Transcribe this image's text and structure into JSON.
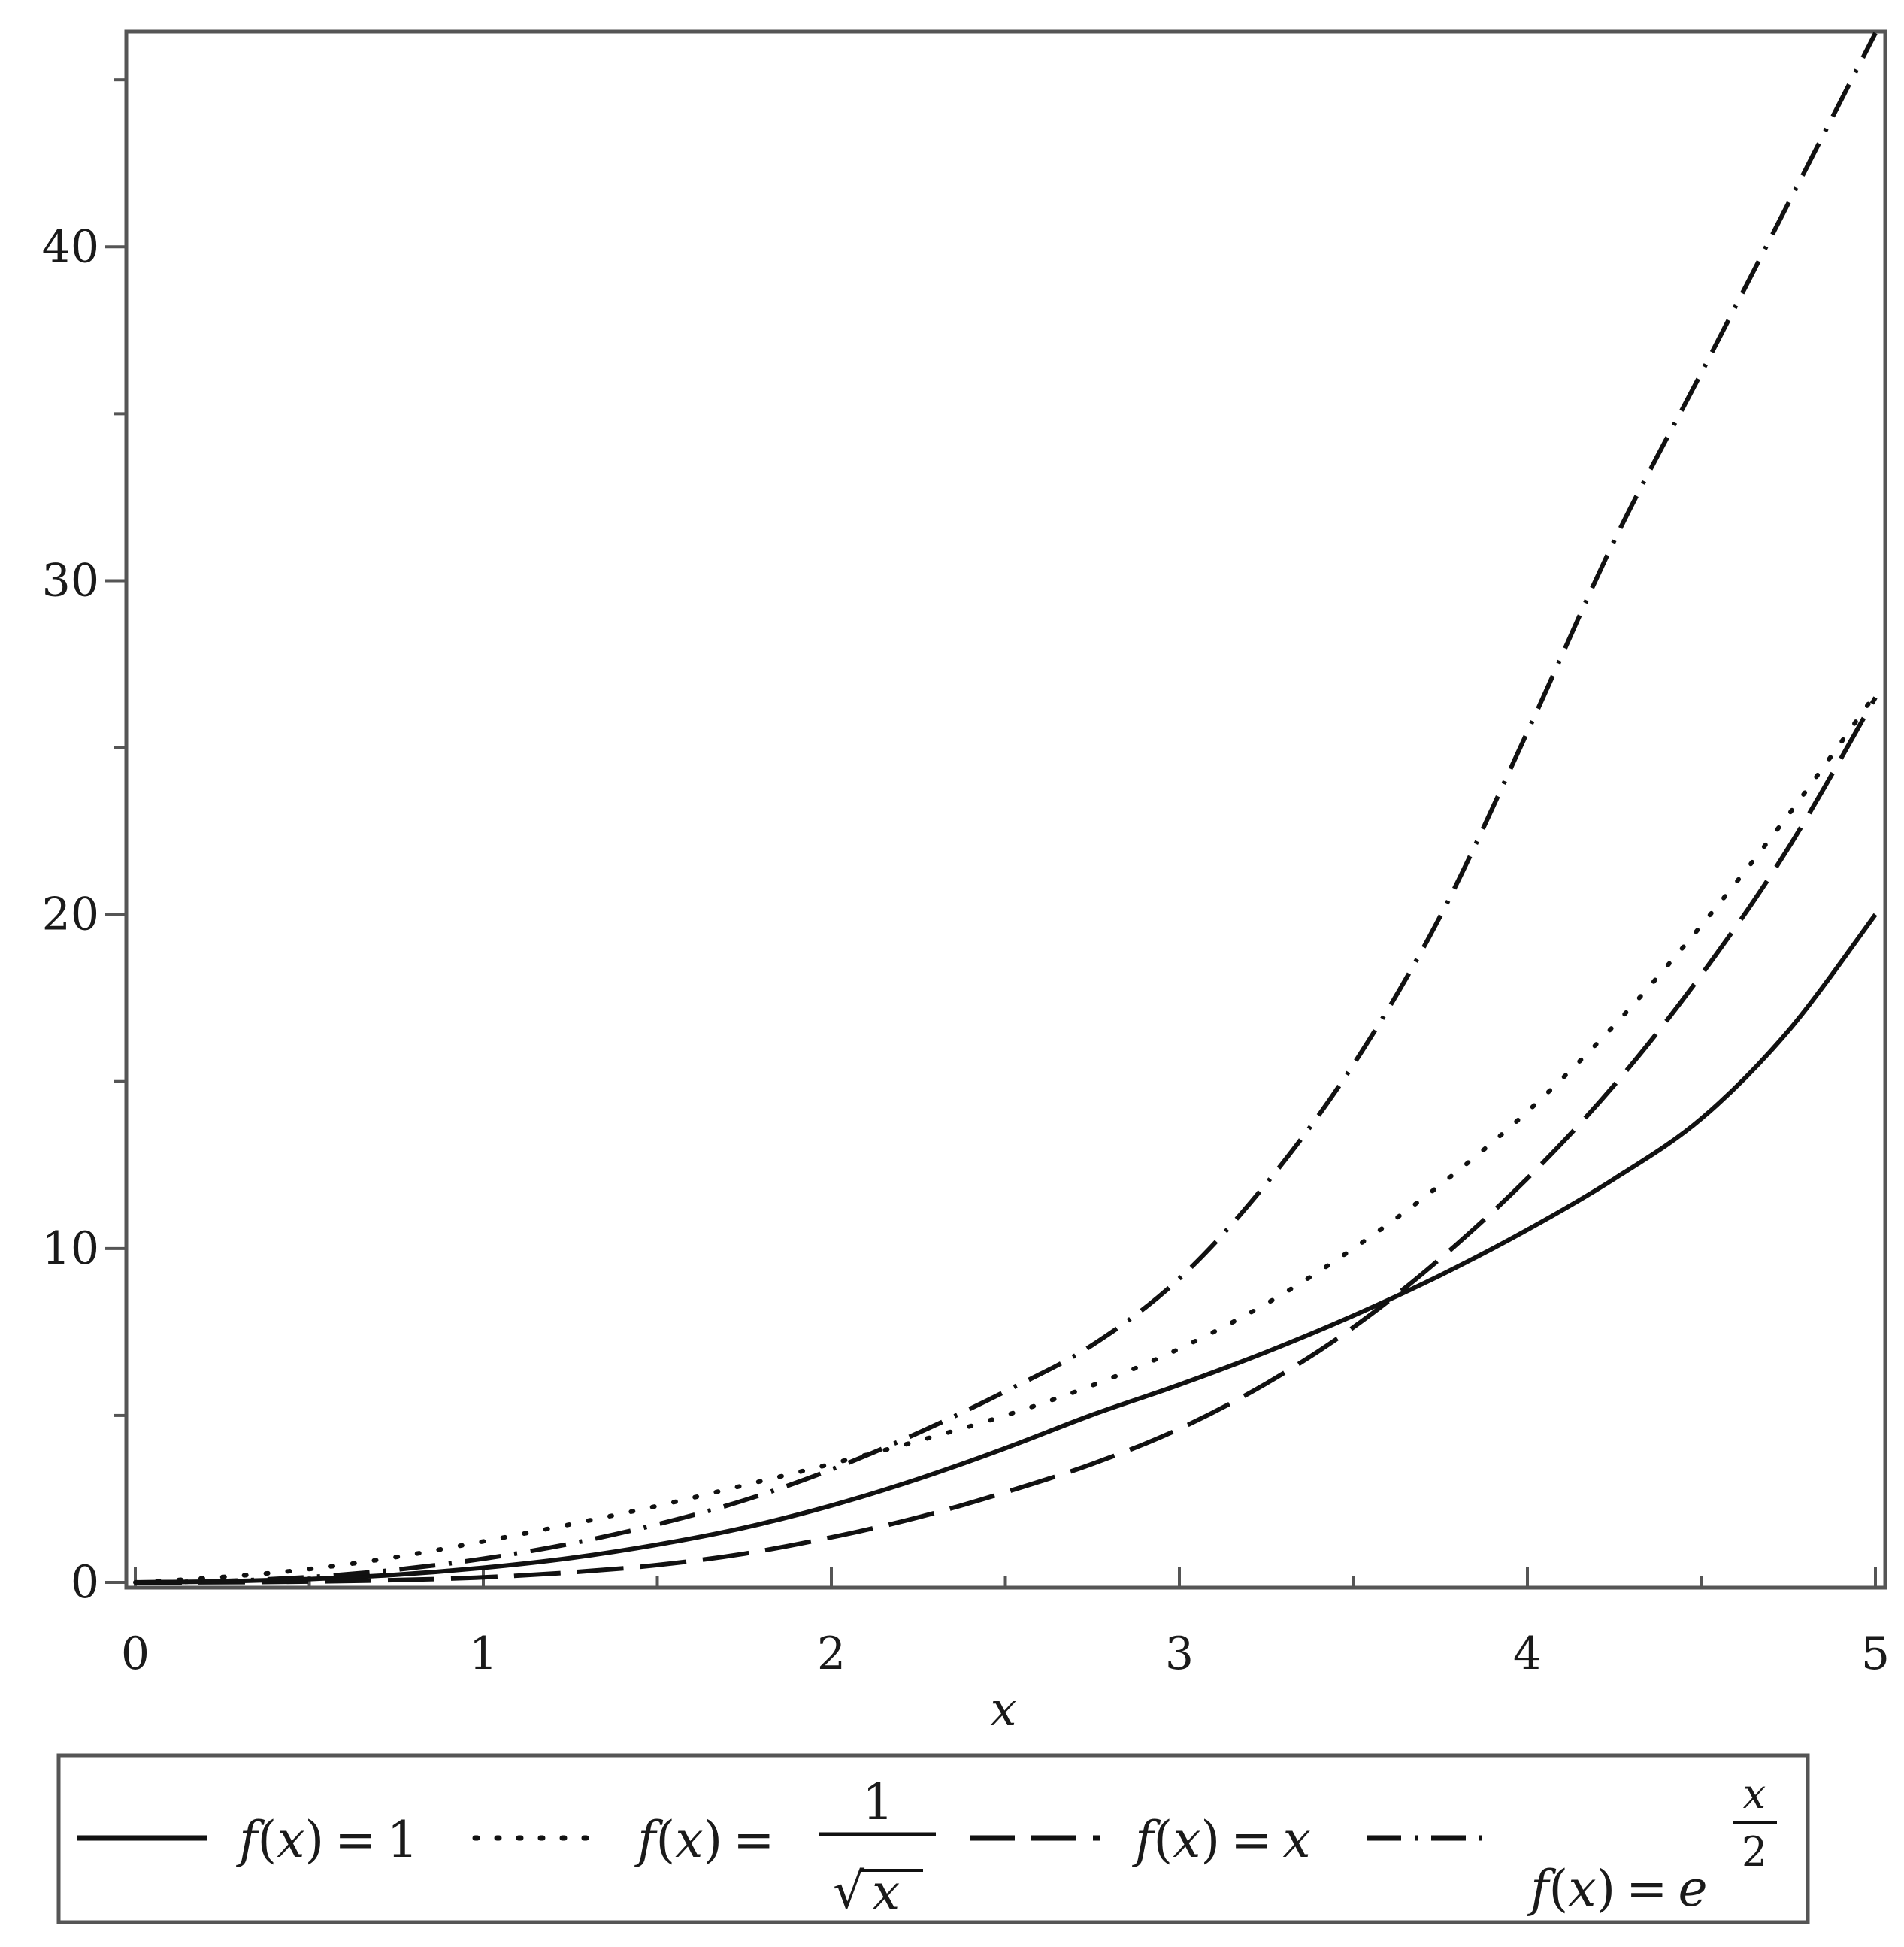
{
  "chart_data": {
    "type": "line",
    "xlabel": "x",
    "ylabel": "",
    "xlim": [
      0,
      5
    ],
    "ylim": [
      0,
      46.4
    ],
    "x_ticks": [
      0,
      1,
      2,
      3,
      4,
      5
    ],
    "x_tick_labels": [
      "0",
      "1",
      "2",
      "3",
      "4",
      "5"
    ],
    "y_ticks": [
      0,
      10,
      20,
      30,
      40
    ],
    "y_tick_labels": [
      "0",
      "10",
      "20",
      "30",
      "40"
    ],
    "grid": false,
    "legend_position": "bottom",
    "x": [
      0,
      0.25,
      0.5,
      0.75,
      1,
      1.25,
      1.5,
      1.75,
      2,
      2.25,
      2.5,
      2.75,
      3,
      3.25,
      3.5,
      3.75,
      4,
      4.25,
      4.5,
      4.75,
      5
    ],
    "series": [
      {
        "name": "f(x) = 1",
        "style": "solid",
        "values": [
          0,
          0.03,
          0.1,
          0.23,
          0.44,
          0.73,
          1.13,
          1.64,
          2.3,
          3.1,
          4.02,
          5.02,
          5.92,
          6.9,
          7.99,
          9.2,
          10.56,
          12.09,
          13.89,
          16.52,
          20.0
        ]
      },
      {
        "name": "f(x) = 1/√x",
        "style": "dotted",
        "values": [
          0,
          0.16,
          0.4,
          0.76,
          1.23,
          1.74,
          2.29,
          2.91,
          3.55,
          4.24,
          5.0,
          5.9,
          7.0,
          8.35,
          10.0,
          11.91,
          14.1,
          16.69,
          19.68,
          22.99,
          26.6
        ]
      },
      {
        "name": "f(x) = x",
        "style": "dashed",
        "values": [
          0,
          0.005,
          0.025,
          0.07,
          0.15,
          0.3,
          0.52,
          0.86,
          1.35,
          1.95,
          2.7,
          3.55,
          4.6,
          5.96,
          7.64,
          9.7,
          12.1,
          14.9,
          18.2,
          22.0,
          26.5
        ]
      },
      {
        "name": "f(x) = e^(x/2)",
        "style": "dashdot",
        "values": [
          0,
          0.04,
          0.16,
          0.38,
          0.71,
          1.16,
          1.74,
          2.46,
          3.38,
          4.48,
          5.72,
          7.11,
          9.1,
          11.95,
          15.51,
          19.96,
          25.47,
          31.21,
          36.23,
          41.31,
          46.4
        ]
      }
    ]
  },
  "legend": {
    "f": "f",
    "paren_open": "(",
    "x": "x",
    "paren_close": ")",
    "eq": "=",
    "one": "1",
    "sqrt_sign": "√",
    "e": "e",
    "two": "2"
  }
}
